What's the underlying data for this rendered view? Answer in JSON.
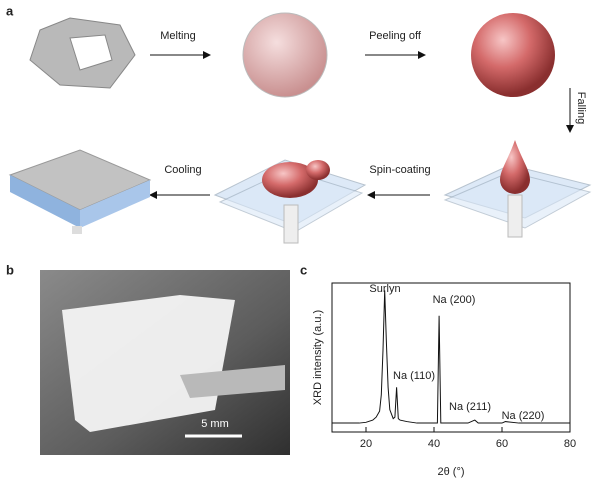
{
  "figure": {
    "panel_a": {
      "label": "a",
      "steps": [
        "Melting",
        "Peeling off",
        "Falling",
        "Spin-coating",
        "Cooling"
      ]
    },
    "panel_b": {
      "label": "b",
      "scale_bar": "5 mm"
    }
  },
  "chart_data": {
    "type": "line",
    "panel_label": "c",
    "xlabel": "2θ (°)",
    "ylabel": "XRD intensity (a.u.)",
    "x": [
      10,
      14,
      18,
      20,
      22,
      23,
      24,
      24.5,
      25,
      25.5,
      26,
      26.5,
      27,
      28,
      28.5,
      29,
      29.5,
      30,
      32,
      35,
      38,
      41,
      41.5,
      42,
      45,
      50,
      52,
      53,
      55,
      60,
      61,
      65,
      70,
      75,
      80
    ],
    "values": [
      6,
      6,
      6,
      6.5,
      8,
      10,
      14,
      25,
      55,
      95,
      60,
      30,
      15,
      9,
      10,
      30,
      9,
      8,
      7,
      6,
      6,
      6,
      78,
      6,
      6,
      6,
      8,
      6,
      6,
      6,
      7,
      6,
      6,
      6,
      6
    ],
    "color": "#111111",
    "xlim": [
      10,
      80
    ],
    "xticks": [
      20,
      40,
      60,
      80
    ],
    "ylim": [
      0,
      100
    ],
    "annotations": [
      "Surlyn",
      "Na (200)",
      "Na (110)",
      "Na (211)",
      "Na (220)"
    ]
  }
}
